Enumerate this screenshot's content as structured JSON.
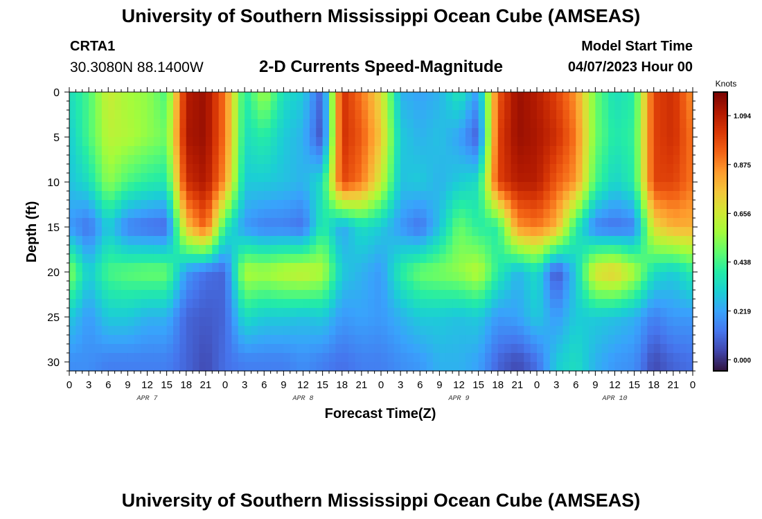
{
  "header": {
    "title": "University of Southern Mississippi Ocean Cube (AMSEAS)",
    "station": "CRTA1",
    "coords": "30.3080N  88.1400W",
    "subtitle": "2-D Currents Speed-Magnitude",
    "model_start_label": "Model Start Time",
    "model_start_value": "04/07/2023 Hour 00"
  },
  "footer": {
    "title": "University of Southern Mississippi Ocean Cube (AMSEAS)"
  },
  "colors": {
    "background": "#ffffff",
    "axis": "#000000",
    "colormap": [
      "#30123b",
      "#4145ab",
      "#4675ed",
      "#39a2fc",
      "#1bcfd4",
      "#24eca6",
      "#61fc6c",
      "#a4fc3b",
      "#d1e834",
      "#f3c63a",
      "#fe9b2d",
      "#f36315",
      "#d93806",
      "#b11901",
      "#7a0403"
    ]
  },
  "chart_data": {
    "type": "heatmap",
    "title": "2-D Currents Speed-Magnitude",
    "xlabel": "Forecast Time(Z)",
    "ylabel": "Depth (ft)",
    "x_units": "hours from 04/07/2023 00Z",
    "xlim": [
      0,
      96
    ],
    "ylim": [
      31,
      0
    ],
    "x_tick_values": [
      0,
      3,
      6,
      9,
      12,
      15,
      18,
      21,
      24,
      27,
      30,
      33,
      36,
      39,
      42,
      45,
      48,
      51,
      54,
      57,
      60,
      63,
      66,
      69,
      72,
      75,
      78,
      81,
      84,
      87,
      90,
      93,
      96
    ],
    "x_tick_labels": [
      "0",
      "3",
      "6",
      "9",
      "12",
      "15",
      "18",
      "21",
      "0",
      "3",
      "6",
      "9",
      "12",
      "15",
      "18",
      "21",
      "0",
      "3",
      "6",
      "9",
      "12",
      "15",
      "18",
      "21",
      "0",
      "3",
      "6",
      "9",
      "12",
      "15",
      "18",
      "21",
      "0"
    ],
    "day_labels": [
      {
        "label": "APR 7",
        "hour": 12
      },
      {
        "label": "APR 8",
        "hour": 36
      },
      {
        "label": "APR 9",
        "hour": 60
      },
      {
        "label": "APR 10",
        "hour": 84
      }
    ],
    "y_tick_values": [
      0,
      5,
      10,
      15,
      20,
      25,
      30
    ],
    "y_tick_labels": [
      "0",
      "5",
      "10",
      "15",
      "20",
      "25",
      "30"
    ],
    "colorbar": {
      "title": "Knots",
      "min": -0.05,
      "max": 1.2,
      "tick_values": [
        0.0,
        0.219,
        0.438,
        0.656,
        0.875,
        1.094
      ],
      "tick_labels": [
        "0.000",
        "0.219",
        "0.438",
        "0.656",
        "0.875",
        "1.094"
      ]
    },
    "depth_layers_ft": [
      0,
      5,
      10,
      15,
      20,
      25,
      30
    ],
    "grid_hours": [
      0,
      3,
      6,
      9,
      12,
      15,
      18,
      21,
      24,
      27,
      30,
      33,
      36,
      39,
      42,
      45,
      48,
      51,
      54,
      57,
      60,
      63,
      66,
      69,
      72,
      75,
      78,
      81,
      84,
      87,
      90,
      93,
      96
    ],
    "speed_knots": [
      [
        0.35,
        0.45,
        0.65,
        0.58,
        0.55,
        0.45,
        1.1,
        1.15,
        0.9,
        0.38,
        0.58,
        0.35,
        0.3,
        0.08,
        1.05,
        0.9,
        0.7,
        0.25,
        0.22,
        0.25,
        0.38,
        0.2,
        0.95,
        1.15,
        1.1,
        1.0,
        0.85,
        0.5,
        0.35,
        0.4,
        1.0,
        1.05,
        0.85
      ],
      [
        0.3,
        0.45,
        0.62,
        0.6,
        0.55,
        0.5,
        1.12,
        1.15,
        0.9,
        0.35,
        0.4,
        0.3,
        0.25,
        0.05,
        1.05,
        0.95,
        0.75,
        0.3,
        0.25,
        0.28,
        0.22,
        0.08,
        1.0,
        1.15,
        1.12,
        1.05,
        0.9,
        0.5,
        0.38,
        0.42,
        1.0,
        1.05,
        0.9
      ],
      [
        0.28,
        0.35,
        0.55,
        0.45,
        0.4,
        0.38,
        1.05,
        1.12,
        0.85,
        0.3,
        0.3,
        0.28,
        0.25,
        0.35,
        1.0,
        0.9,
        0.65,
        0.28,
        0.3,
        0.25,
        0.3,
        0.35,
        1.0,
        1.1,
        1.1,
        0.95,
        0.85,
        0.45,
        0.32,
        0.4,
        1.0,
        1.0,
        0.9
      ],
      [
        0.2,
        0.12,
        0.3,
        0.15,
        0.12,
        0.1,
        0.75,
        0.95,
        0.4,
        0.2,
        0.15,
        0.15,
        0.12,
        0.4,
        0.22,
        0.35,
        0.3,
        0.2,
        0.12,
        0.28,
        0.5,
        0.4,
        0.4,
        0.85,
        0.9,
        0.8,
        0.4,
        0.15,
        0.12,
        0.15,
        0.7,
        0.8,
        0.8
      ],
      [
        0.55,
        0.3,
        0.45,
        0.48,
        0.5,
        0.5,
        0.2,
        0.12,
        0.1,
        0.6,
        0.58,
        0.62,
        0.65,
        0.6,
        0.3,
        0.25,
        0.2,
        0.4,
        0.5,
        0.52,
        0.55,
        0.62,
        0.4,
        0.25,
        0.35,
        0.05,
        0.3,
        0.7,
        0.75,
        0.6,
        0.35,
        0.3,
        0.4
      ],
      [
        0.3,
        0.2,
        0.3,
        0.3,
        0.25,
        0.25,
        0.1,
        0.08,
        0.1,
        0.35,
        0.3,
        0.3,
        0.28,
        0.3,
        0.2,
        0.22,
        0.2,
        0.25,
        0.3,
        0.3,
        0.28,
        0.3,
        0.2,
        0.22,
        0.3,
        0.2,
        0.3,
        0.3,
        0.28,
        0.25,
        0.15,
        0.2,
        0.2
      ],
      [
        0.18,
        0.18,
        0.15,
        0.15,
        0.15,
        0.15,
        0.1,
        0.05,
        0.12,
        0.15,
        0.15,
        0.15,
        0.18,
        0.15,
        0.12,
        0.15,
        0.15,
        0.18,
        0.2,
        0.25,
        0.25,
        0.22,
        0.1,
        0.05,
        0.12,
        0.3,
        0.35,
        0.25,
        0.2,
        0.18,
        0.05,
        0.1,
        0.12
      ]
    ]
  }
}
